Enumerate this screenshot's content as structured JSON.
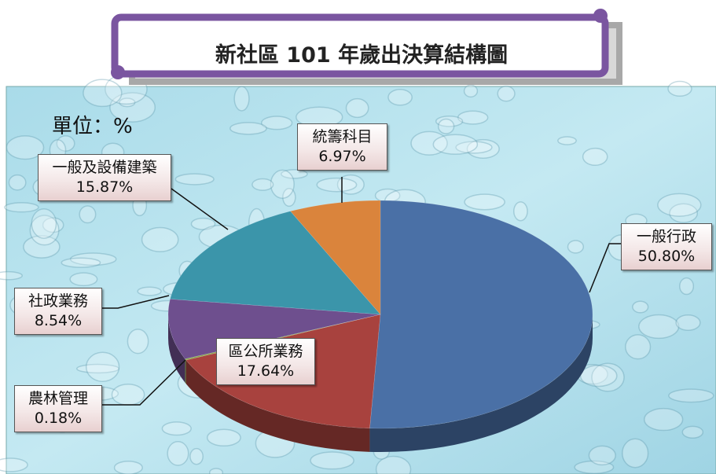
{
  "chart_data": {
    "type": "pie3d",
    "title": "新社區 101 年歲出決算結構圖",
    "unit_label": "單位：%",
    "categories": [
      "一般行政",
      "區公所業務",
      "農林管理",
      "社政業務",
      "一般及設備建築",
      "統籌科目"
    ],
    "values": [
      50.8,
      17.64,
      0.18,
      8.54,
      15.87,
      6.97
    ],
    "value_labels": [
      "50.80%",
      "17.64%",
      "0.18%",
      "8.54%",
      "15.87%",
      "6.97%"
    ],
    "colors": [
      "#4a70a6",
      "#a8423e",
      "#8aa54a",
      "#6e4f8e",
      "#3b95aa",
      "#da843c"
    ]
  }
}
